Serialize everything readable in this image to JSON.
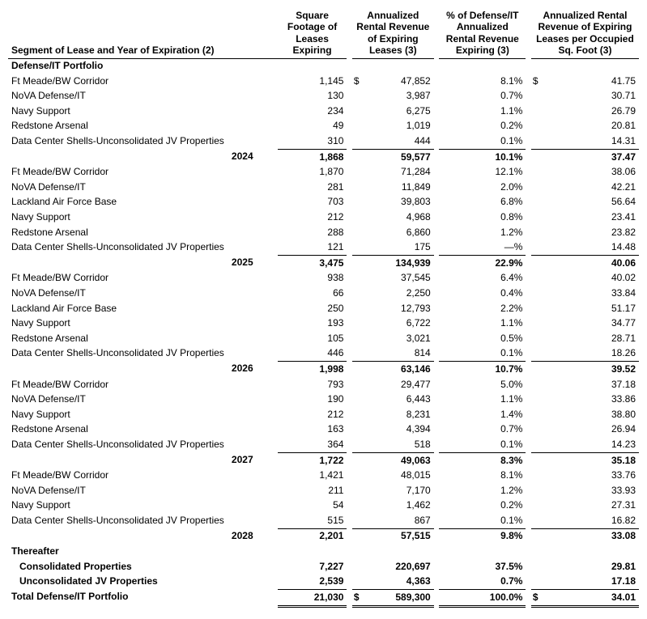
{
  "headers": {
    "segment": "Segment of Lease and Year of Expiration (2)",
    "sqft": "Square Footage of Leases Expiring",
    "revenue": "Annualized Rental Revenue of Expiring Leases (3)",
    "pct": "% of Defense/IT Annualized Rental Revenue Expiring (3)",
    "psf": "Annualized Rental Revenue of Expiring Leases per Occupied Sq. Foot (3)"
  },
  "section_title": "Defense/IT Portfolio",
  "cur": "$",
  "years": [
    {
      "year": "2024",
      "rows": [
        {
          "label": "Ft Meade/BW Corridor",
          "sqft": "1,145",
          "rev": "47,852",
          "pct": "8.1%",
          "psf": "41.75",
          "first": true
        },
        {
          "label": "NoVA Defense/IT",
          "sqft": "130",
          "rev": "3,987",
          "pct": "0.7%",
          "psf": "30.71"
        },
        {
          "label": "Navy Support",
          "sqft": "234",
          "rev": "6,275",
          "pct": "1.1%",
          "psf": "26.79"
        },
        {
          "label": "Redstone Arsenal",
          "sqft": "49",
          "rev": "1,019",
          "pct": "0.2%",
          "psf": "20.81"
        },
        {
          "label": "Data Center Shells-Unconsolidated JV Properties",
          "sqft": "310",
          "rev": "444",
          "pct": "0.1%",
          "psf": "14.31"
        }
      ],
      "subtotal": {
        "sqft": "1,868",
        "rev": "59,577",
        "pct": "10.1%",
        "psf": "37.47"
      }
    },
    {
      "year": "2025",
      "rows": [
        {
          "label": "Ft Meade/BW Corridor",
          "sqft": "1,870",
          "rev": "71,284",
          "pct": "12.1%",
          "psf": "38.06"
        },
        {
          "label": "NoVA Defense/IT",
          "sqft": "281",
          "rev": "11,849",
          "pct": "2.0%",
          "psf": "42.21"
        },
        {
          "label": "Lackland Air Force Base",
          "sqft": "703",
          "rev": "39,803",
          "pct": "6.8%",
          "psf": "56.64"
        },
        {
          "label": "Navy Support",
          "sqft": "212",
          "rev": "4,968",
          "pct": "0.8%",
          "psf": "23.41"
        },
        {
          "label": "Redstone Arsenal",
          "sqft": "288",
          "rev": "6,860",
          "pct": "1.2%",
          "psf": "23.82"
        },
        {
          "label": "Data Center Shells-Unconsolidated JV Properties",
          "sqft": "121",
          "rev": "175",
          "pct": "—%",
          "psf": "14.48"
        }
      ],
      "subtotal": {
        "sqft": "3,475",
        "rev": "134,939",
        "pct": "22.9%",
        "psf": "40.06"
      }
    },
    {
      "year": "2026",
      "rows": [
        {
          "label": "Ft Meade/BW Corridor",
          "sqft": "938",
          "rev": "37,545",
          "pct": "6.4%",
          "psf": "40.02"
        },
        {
          "label": "NoVA Defense/IT",
          "sqft": "66",
          "rev": "2,250",
          "pct": "0.4%",
          "psf": "33.84"
        },
        {
          "label": "Lackland Air Force Base",
          "sqft": "250",
          "rev": "12,793",
          "pct": "2.2%",
          "psf": "51.17"
        },
        {
          "label": "Navy Support",
          "sqft": "193",
          "rev": "6,722",
          "pct": "1.1%",
          "psf": "34.77"
        },
        {
          "label": "Redstone Arsenal",
          "sqft": "105",
          "rev": "3,021",
          "pct": "0.5%",
          "psf": "28.71"
        },
        {
          "label": "Data Center Shells-Unconsolidated JV Properties",
          "sqft": "446",
          "rev": "814",
          "pct": "0.1%",
          "psf": "18.26"
        }
      ],
      "subtotal": {
        "sqft": "1,998",
        "rev": "63,146",
        "pct": "10.7%",
        "psf": "39.52"
      }
    },
    {
      "year": "2027",
      "rows": [
        {
          "label": "Ft Meade/BW Corridor",
          "sqft": "793",
          "rev": "29,477",
          "pct": "5.0%",
          "psf": "37.18"
        },
        {
          "label": "NoVA Defense/IT",
          "sqft": "190",
          "rev": "6,443",
          "pct": "1.1%",
          "psf": "33.86"
        },
        {
          "label": "Navy Support",
          "sqft": "212",
          "rev": "8,231",
          "pct": "1.4%",
          "psf": "38.80"
        },
        {
          "label": "Redstone Arsenal",
          "sqft": "163",
          "rev": "4,394",
          "pct": "0.7%",
          "psf": "26.94"
        },
        {
          "label": "Data Center Shells-Unconsolidated JV Properties",
          "sqft": "364",
          "rev": "518",
          "pct": "0.1%",
          "psf": "14.23"
        }
      ],
      "subtotal": {
        "sqft": "1,722",
        "rev": "49,063",
        "pct": "8.3%",
        "psf": "35.18"
      }
    },
    {
      "year": "2028",
      "rows": [
        {
          "label": "Ft Meade/BW Corridor",
          "sqft": "1,421",
          "rev": "48,015",
          "pct": "8.1%",
          "psf": "33.76"
        },
        {
          "label": "NoVA Defense/IT",
          "sqft": "211",
          "rev": "7,170",
          "pct": "1.2%",
          "psf": "33.93"
        },
        {
          "label": "Navy Support",
          "sqft": "54",
          "rev": "1,462",
          "pct": "0.2%",
          "psf": "27.31"
        },
        {
          "label": "Data Center Shells-Unconsolidated JV Properties",
          "sqft": "515",
          "rev": "867",
          "pct": "0.1%",
          "psf": "16.82"
        }
      ],
      "subtotal": {
        "sqft": "2,201",
        "rev": "57,515",
        "pct": "9.8%",
        "psf": "33.08"
      }
    }
  ],
  "thereafter": {
    "label": "Thereafter",
    "rows": [
      {
        "label": "Consolidated Properties",
        "sqft": "7,227",
        "rev": "220,697",
        "pct": "37.5%",
        "psf": "29.81"
      },
      {
        "label": "Unconsolidated JV Properties",
        "sqft": "2,539",
        "rev": "4,363",
        "pct": "0.7%",
        "psf": "17.18"
      }
    ]
  },
  "total": {
    "label": "Total Defense/IT Portfolio",
    "sqft": "21,030",
    "rev": "589,300",
    "pct": "100.0%",
    "psf": "34.01"
  }
}
